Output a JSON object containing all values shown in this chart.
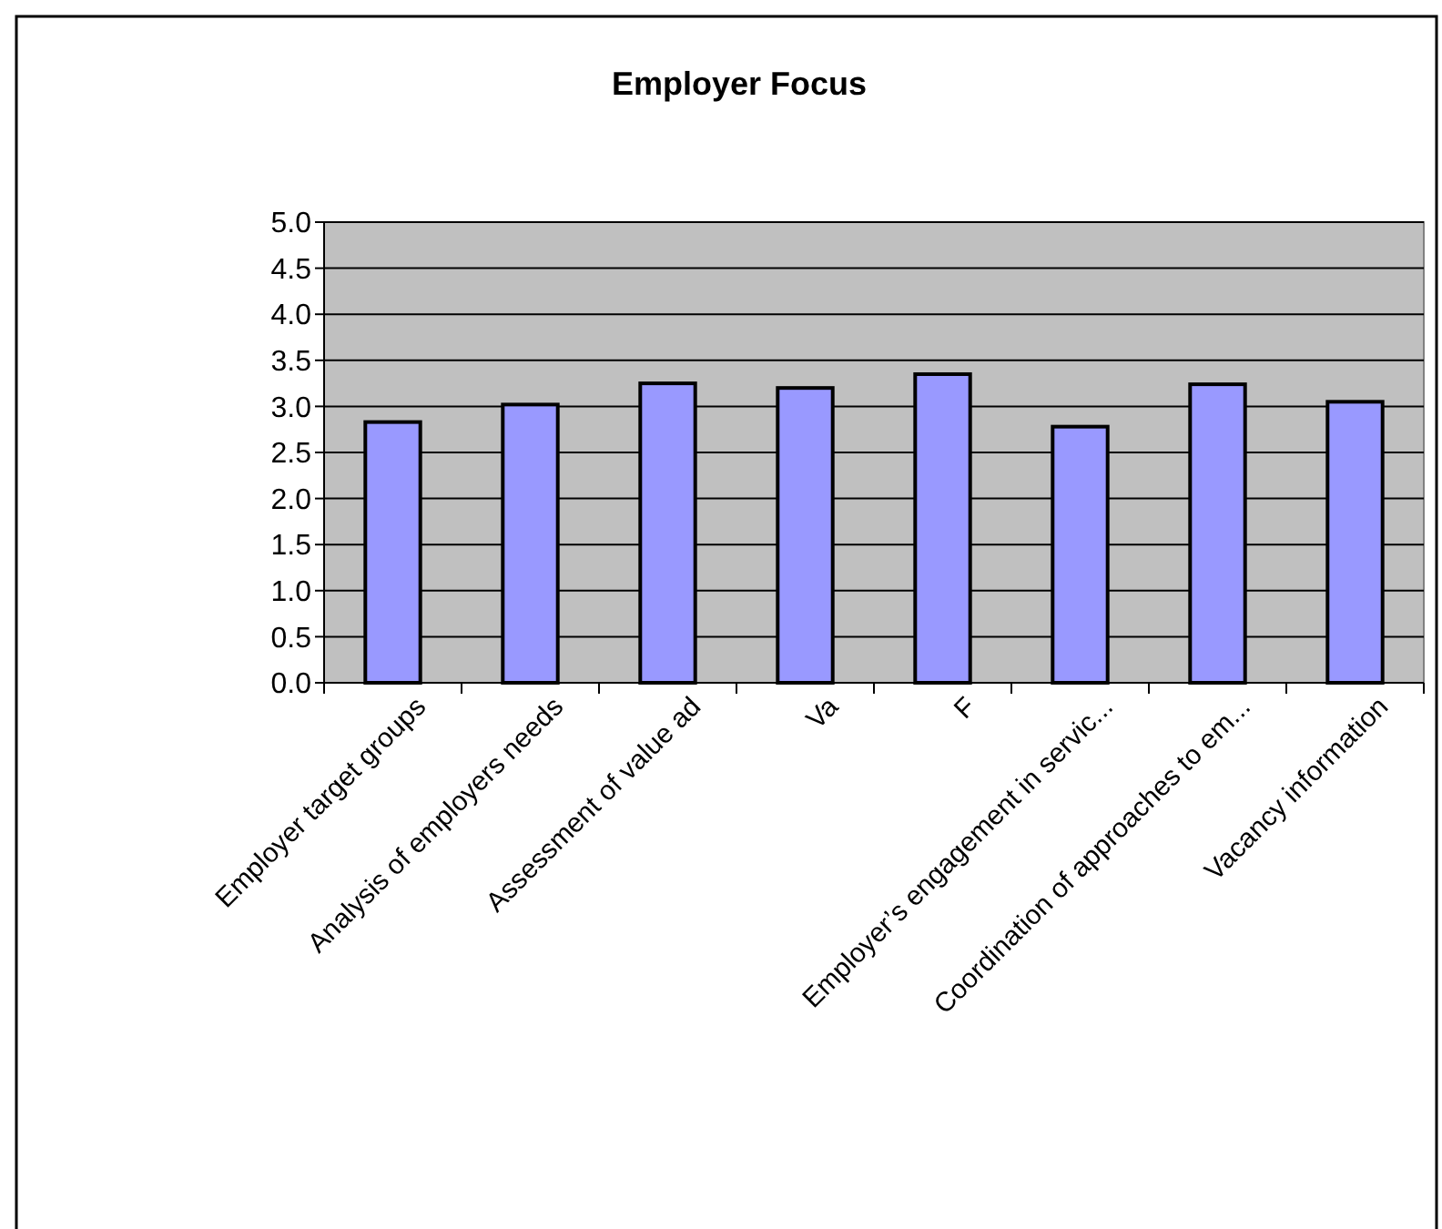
{
  "chart_data": {
    "type": "bar",
    "title": "Employer Focus",
    "categories": [
      "Employer  target groups",
      "Analysis of employers needs",
      "Assessment of value ad",
      "Va",
      "F",
      "Employer’s engagement in servic...",
      "Coordination of approaches to em...",
      "Vacancy information"
    ],
    "values": [
      2.83,
      3.02,
      3.25,
      3.2,
      3.35,
      2.78,
      3.24,
      3.05
    ],
    "color": "#9999ff",
    "ylim": [
      0,
      5
    ],
    "yticks": [
      {
        "value": 0,
        "label": "0.0"
      },
      {
        "value": 0.5,
        "label": "0.5"
      },
      {
        "value": 1,
        "label": "1.0"
      },
      {
        "value": 1.5,
        "label": "1.5"
      },
      {
        "value": 2,
        "label": "2.0"
      },
      {
        "value": 2.5,
        "label": "2.5"
      },
      {
        "value": 3,
        "label": "3.0"
      },
      {
        "value": 3.5,
        "label": "3.5"
      },
      {
        "value": 4,
        "label": "4.0"
      },
      {
        "value": 4.5,
        "label": "4.5"
      },
      {
        "value": 5,
        "label": "5.0"
      }
    ],
    "grid": "y"
  }
}
